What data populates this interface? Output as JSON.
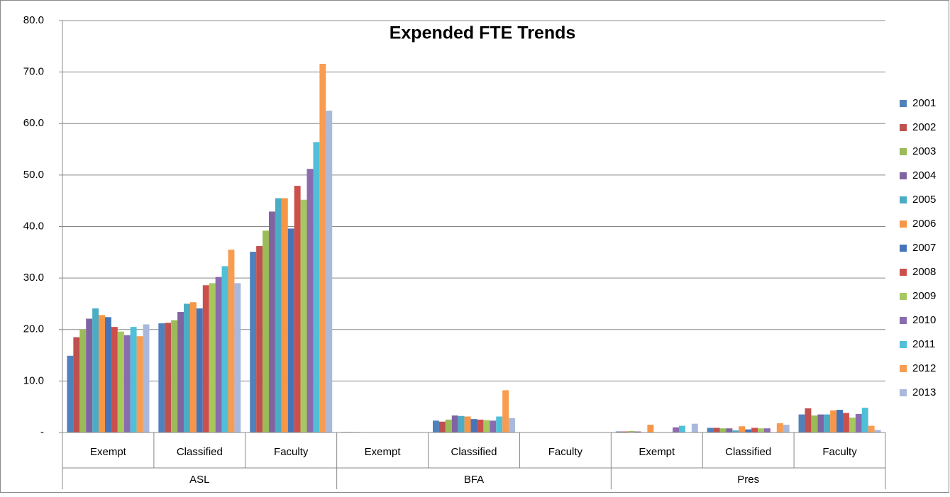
{
  "chart_data": {
    "type": "bar",
    "title": "Expended FTE Trends",
    "categories": [
      "Exempt",
      "Classified",
      "Faculty",
      "Exempt",
      "Classified",
      "Faculty",
      "Exempt",
      "Classified",
      "Faculty"
    ],
    "groups": [
      "ASL",
      "BFA",
      "Pres"
    ],
    "ylim": [
      0,
      80
    ],
    "yticks": [
      {
        "value": 0,
        "label": "-"
      },
      {
        "value": 10,
        "label": "10.0"
      },
      {
        "value": 20,
        "label": "20.0"
      },
      {
        "value": 30,
        "label": "30.0"
      },
      {
        "value": 40,
        "label": "40.0"
      },
      {
        "value": 50,
        "label": "50.0"
      },
      {
        "value": 60,
        "label": "60.0"
      },
      {
        "value": 70,
        "label": "70.0"
      },
      {
        "value": 80,
        "label": "80.0"
      }
    ],
    "grid": true,
    "legend": "right",
    "series": [
      {
        "name": "2001",
        "color": "#4F81BD",
        "values": [
          14.9,
          21.2,
          35.1,
          0.1,
          2.3,
          0,
          0.2,
          0.9,
          3.5
        ]
      },
      {
        "name": "2002",
        "color": "#C0504D",
        "values": [
          18.5,
          21.3,
          36.2,
          0.1,
          2.1,
          0,
          0.2,
          0.9,
          4.7
        ]
      },
      {
        "name": "2003",
        "color": "#9BBB59",
        "values": [
          20.0,
          21.8,
          39.2,
          0.1,
          2.5,
          0,
          0.3,
          0.8,
          3.3
        ]
      },
      {
        "name": "2004",
        "color": "#8064A2",
        "values": [
          22.1,
          23.4,
          42.9,
          0,
          3.3,
          0,
          0.2,
          0.8,
          3.5
        ]
      },
      {
        "name": "2005",
        "color": "#4BACC6",
        "values": [
          24.1,
          25.0,
          45.5,
          0,
          3.2,
          0,
          0,
          0.4,
          3.5
        ]
      },
      {
        "name": "2006",
        "color": "#F79646",
        "values": [
          22.8,
          25.3,
          45.5,
          0,
          3.1,
          0,
          1.5,
          1.2,
          4.3
        ]
      },
      {
        "name": "2007",
        "color": "#4575B8",
        "values": [
          22.4,
          24.1,
          39.6,
          0,
          2.6,
          0,
          0,
          0.6,
          4.4
        ]
      },
      {
        "name": "2008",
        "color": "#CD4F4C",
        "values": [
          20.5,
          28.6,
          47.9,
          0,
          2.5,
          0,
          0,
          0.9,
          3.8
        ]
      },
      {
        "name": "2009",
        "color": "#A5C85F",
        "values": [
          19.6,
          29.0,
          45.2,
          0,
          2.4,
          0,
          0,
          0.8,
          2.9
        ]
      },
      {
        "name": "2010",
        "color": "#8A6BB0",
        "values": [
          18.9,
          30.2,
          51.2,
          0,
          2.3,
          0,
          1.0,
          0.8,
          3.6
        ]
      },
      {
        "name": "2011",
        "color": "#4FC0D8",
        "values": [
          20.5,
          32.3,
          56.4,
          0,
          3.1,
          0,
          1.3,
          0,
          4.8
        ]
      },
      {
        "name": "2012",
        "color": "#F99C4F",
        "values": [
          18.7,
          35.5,
          71.6,
          0,
          8.2,
          0,
          0,
          1.8,
          1.3
        ]
      },
      {
        "name": "2013",
        "color": "#A9B9DC",
        "values": [
          21.0,
          29.0,
          62.5,
          0,
          2.8,
          0,
          1.7,
          1.5,
          0.5
        ]
      }
    ]
  }
}
